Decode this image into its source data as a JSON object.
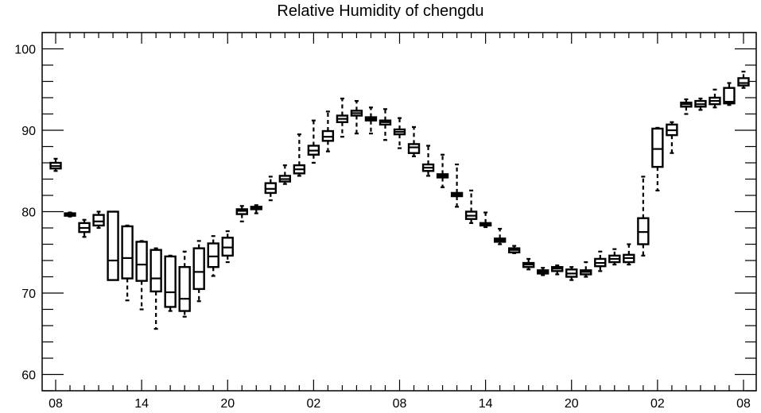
{
  "chart_data": {
    "type": "box",
    "title": "Relative Humidity of chengdu",
    "xlabel": "",
    "ylabel": "",
    "ylim": [
      58,
      102
    ],
    "xlim": [
      0,
      49
    ],
    "yticks": [
      60,
      70,
      80,
      90,
      100
    ],
    "xtick_labels": [
      {
        "index": 1,
        "label": "08"
      },
      {
        "index": 7,
        "label": "14"
      },
      {
        "index": 13,
        "label": "20"
      },
      {
        "index": 19,
        "label": "02"
      },
      {
        "index": 25,
        "label": "08"
      },
      {
        "index": 31,
        "label": "14"
      },
      {
        "index": 37,
        "label": "20"
      },
      {
        "index": 43,
        "label": "02"
      },
      {
        "index": 49,
        "label": "08"
      }
    ],
    "boxes": [
      {
        "x": 1,
        "q1": 85.3,
        "median": 85.6,
        "q3": 86.0,
        "lo": 85.0,
        "hi": 86.5
      },
      {
        "x": 2,
        "q1": 79.5,
        "median": 79.6,
        "q3": 79.8,
        "lo": 79.4,
        "hi": 79.9
      },
      {
        "x": 3,
        "q1": 77.5,
        "median": 78.0,
        "q3": 78.6,
        "lo": 76.9,
        "hi": 79.0
      },
      {
        "x": 4,
        "q1": 78.3,
        "median": 78.8,
        "q3": 79.6,
        "lo": 78.0,
        "hi": 80.0
      },
      {
        "x": 5,
        "q1": 71.6,
        "median": 74.0,
        "q3": 80.0,
        "lo": 71.6,
        "hi": 80.0
      },
      {
        "x": 6,
        "q1": 71.8,
        "median": 74.3,
        "q3": 78.2,
        "lo": 69.1,
        "hi": 78.3
      },
      {
        "x": 7,
        "q1": 71.5,
        "median": 73.5,
        "q3": 76.3,
        "lo": 68.0,
        "hi": 76.4
      },
      {
        "x": 8,
        "q1": 70.2,
        "median": 71.8,
        "q3": 75.3,
        "lo": 65.6,
        "hi": 75.5
      },
      {
        "x": 9,
        "q1": 68.3,
        "median": 70.1,
        "q3": 74.5,
        "lo": 67.8,
        "hi": 74.6
      },
      {
        "x": 10,
        "q1": 67.8,
        "median": 69.3,
        "q3": 73.2,
        "lo": 67.1,
        "hi": 75.1
      },
      {
        "x": 11,
        "q1": 70.5,
        "median": 72.6,
        "q3": 75.5,
        "lo": 69.0,
        "hi": 76.4
      },
      {
        "x": 12,
        "q1": 73.2,
        "median": 74.5,
        "q3": 76.1,
        "lo": 72.1,
        "hi": 77.0
      },
      {
        "x": 13,
        "q1": 74.6,
        "median": 75.6,
        "q3": 76.8,
        "lo": 73.8,
        "hi": 77.6
      },
      {
        "x": 14,
        "q1": 79.7,
        "median": 80.1,
        "q3": 80.3,
        "lo": 78.8,
        "hi": 80.7
      },
      {
        "x": 15,
        "q1": 80.3,
        "median": 80.5,
        "q3": 80.6,
        "lo": 79.8,
        "hi": 80.8
      },
      {
        "x": 16,
        "q1": 82.3,
        "median": 82.8,
        "q3": 83.5,
        "lo": 81.4,
        "hi": 84.3
      },
      {
        "x": 17,
        "q1": 83.7,
        "median": 84.0,
        "q3": 84.4,
        "lo": 83.4,
        "hi": 85.7
      },
      {
        "x": 18,
        "q1": 84.7,
        "median": 85.2,
        "q3": 85.7,
        "lo": 84.4,
        "hi": 89.5
      },
      {
        "x": 19,
        "q1": 87.0,
        "median": 87.5,
        "q3": 88.1,
        "lo": 86.0,
        "hi": 91.2
      },
      {
        "x": 20,
        "q1": 88.7,
        "median": 89.2,
        "q3": 89.9,
        "lo": 87.4,
        "hi": 92.3
      },
      {
        "x": 21,
        "q1": 91.0,
        "median": 91.4,
        "q3": 91.8,
        "lo": 89.2,
        "hi": 93.9
      },
      {
        "x": 22,
        "q1": 91.8,
        "median": 92.1,
        "q3": 92.4,
        "lo": 89.6,
        "hi": 93.6
      },
      {
        "x": 23,
        "q1": 91.2,
        "median": 91.4,
        "q3": 91.6,
        "lo": 89.6,
        "hi": 92.8
      },
      {
        "x": 24,
        "q1": 90.7,
        "median": 91.0,
        "q3": 91.2,
        "lo": 88.8,
        "hi": 92.6
      },
      {
        "x": 25,
        "q1": 89.5,
        "median": 89.8,
        "q3": 90.1,
        "lo": 87.8,
        "hi": 91.5
      },
      {
        "x": 26,
        "q1": 87.2,
        "median": 87.9,
        "q3": 88.3,
        "lo": 86.8,
        "hi": 90.4
      },
      {
        "x": 27,
        "q1": 85.0,
        "median": 85.4,
        "q3": 85.8,
        "lo": 84.4,
        "hi": 88.1
      },
      {
        "x": 28,
        "q1": 84.2,
        "median": 84.4,
        "q3": 84.6,
        "lo": 83.0,
        "hi": 87.0
      },
      {
        "x": 29,
        "q1": 81.9,
        "median": 82.1,
        "q3": 82.3,
        "lo": 80.6,
        "hi": 85.8
      },
      {
        "x": 30,
        "q1": 79.1,
        "median": 79.5,
        "q3": 80.0,
        "lo": 78.6,
        "hi": 82.6
      },
      {
        "x": 31,
        "q1": 78.3,
        "median": 78.5,
        "q3": 78.6,
        "lo": 78.1,
        "hi": 79.9
      },
      {
        "x": 32,
        "q1": 76.3,
        "median": 76.5,
        "q3": 76.7,
        "lo": 76.0,
        "hi": 77.9
      },
      {
        "x": 33,
        "q1": 75.0,
        "median": 75.3,
        "q3": 75.5,
        "lo": 74.9,
        "hi": 75.8
      },
      {
        "x": 34,
        "q1": 73.2,
        "median": 73.5,
        "q3": 73.7,
        "lo": 72.9,
        "hi": 74.2
      },
      {
        "x": 35,
        "q1": 72.4,
        "median": 72.6,
        "q3": 72.8,
        "lo": 72.2,
        "hi": 73.1
      },
      {
        "x": 36,
        "q1": 72.7,
        "median": 73.0,
        "q3": 73.2,
        "lo": 72.3,
        "hi": 73.4
      },
      {
        "x": 37,
        "q1": 72.0,
        "median": 72.4,
        "q3": 72.9,
        "lo": 71.6,
        "hi": 73.2
      },
      {
        "x": 38,
        "q1": 72.3,
        "median": 72.6,
        "q3": 72.8,
        "lo": 72.0,
        "hi": 73.8
      },
      {
        "x": 39,
        "q1": 73.3,
        "median": 73.7,
        "q3": 74.2,
        "lo": 72.7,
        "hi": 75.1
      },
      {
        "x": 40,
        "q1": 73.8,
        "median": 74.2,
        "q3": 74.6,
        "lo": 73.5,
        "hi": 75.4
      },
      {
        "x": 41,
        "q1": 73.8,
        "median": 74.3,
        "q3": 74.7,
        "lo": 73.5,
        "hi": 76.0
      },
      {
        "x": 42,
        "q1": 76.0,
        "median": 77.5,
        "q3": 79.2,
        "lo": 74.6,
        "hi": 84.3
      },
      {
        "x": 43,
        "q1": 85.5,
        "median": 87.7,
        "q3": 90.2,
        "lo": 82.6,
        "hi": 90.3
      },
      {
        "x": 44,
        "q1": 89.4,
        "median": 90.0,
        "q3": 90.7,
        "lo": 87.2,
        "hi": 91.0
      },
      {
        "x": 45,
        "q1": 92.9,
        "median": 93.2,
        "q3": 93.4,
        "lo": 92.0,
        "hi": 93.8
      },
      {
        "x": 46,
        "q1": 92.9,
        "median": 93.2,
        "q3": 93.6,
        "lo": 92.5,
        "hi": 93.9
      },
      {
        "x": 47,
        "q1": 93.2,
        "median": 93.6,
        "q3": 94.0,
        "lo": 92.8,
        "hi": 95.0
      },
      {
        "x": 48,
        "q1": 93.3,
        "median": 93.5,
        "q3": 95.2,
        "lo": 93.1,
        "hi": 95.8
      },
      {
        "x": 49,
        "q1": 95.5,
        "median": 95.8,
        "q3": 96.4,
        "lo": 95.2,
        "hi": 97.2
      }
    ]
  }
}
